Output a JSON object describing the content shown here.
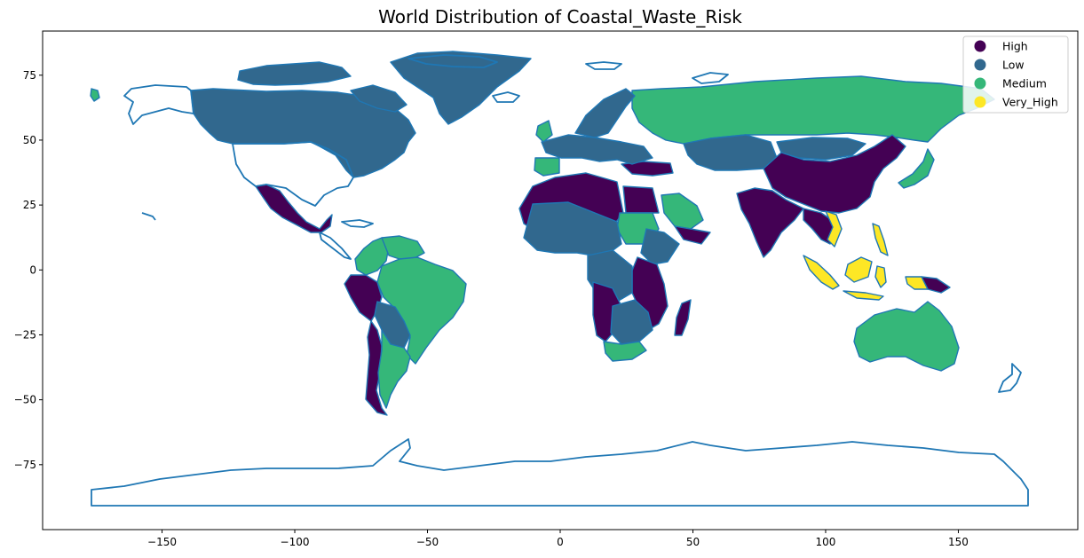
{
  "chart_data": {
    "type": "choropleth",
    "title": "World Distribution of Coastal_Waste_Risk",
    "xlim": [
      -195,
      195
    ],
    "ylim": [
      -100,
      92
    ],
    "x_ticks": [
      -150,
      -100,
      -50,
      0,
      50,
      100,
      150
    ],
    "y_ticks": [
      75,
      50,
      25,
      0,
      -25,
      -50,
      -75
    ],
    "x_tick_labels": [
      "−150",
      "−100",
      "−50",
      "0",
      "50",
      "100",
      "150"
    ],
    "y_tick_labels": [
      "75",
      "50",
      "25",
      "0",
      "−25",
      "−50",
      "−75"
    ],
    "legend_position": "top-right",
    "boundary_color": "#1f77b4",
    "categories": [
      {
        "name": "High",
        "color": "#440154"
      },
      {
        "name": "Low",
        "color": "#31688e"
      },
      {
        "name": "Medium",
        "color": "#35b779"
      },
      {
        "name": "Very_High",
        "color": "#fde725"
      }
    ],
    "regions": [
      {
        "name": "Canada",
        "category": "Low"
      },
      {
        "name": "Greenland",
        "category": "Low"
      },
      {
        "name": "Alaska",
        "category": "Medium"
      },
      {
        "name": "Mexico",
        "category": "High"
      },
      {
        "name": "Peru",
        "category": "High"
      },
      {
        "name": "Chile",
        "category": "High"
      },
      {
        "name": "Colombia",
        "category": "Medium"
      },
      {
        "name": "Venezuela",
        "category": "Medium"
      },
      {
        "name": "Brazil",
        "category": "Medium"
      },
      {
        "name": "Argentina",
        "category": "Medium"
      },
      {
        "name": "Bolivia",
        "category": "Low"
      },
      {
        "name": "Paraguay",
        "category": "Low"
      },
      {
        "name": "Russia",
        "category": "Medium"
      },
      {
        "name": "Kazakhstan",
        "category": "Low"
      },
      {
        "name": "Mongolia",
        "category": "Low"
      },
      {
        "name": "China",
        "category": "High"
      },
      {
        "name": "India",
        "category": "High"
      },
      {
        "name": "Southeast Asia",
        "category": "High"
      },
      {
        "name": "Vietnam",
        "category": "Very_High"
      },
      {
        "name": "Philippines",
        "category": "Very_High"
      },
      {
        "name": "Indonesia",
        "category": "Very_High"
      },
      {
        "name": "Borneo",
        "category": "Very_High"
      },
      {
        "name": "Papua New Guinea",
        "category": "High"
      },
      {
        "name": "Japan",
        "category": "Medium"
      },
      {
        "name": "Australia",
        "category": "Medium"
      },
      {
        "name": "Saudi Arabia",
        "category": "Medium"
      },
      {
        "name": "Turkey",
        "category": "High"
      },
      {
        "name": "North Africa",
        "category": "High"
      },
      {
        "name": "Egypt",
        "category": "High"
      },
      {
        "name": "Sudan",
        "category": "Medium"
      },
      {
        "name": "Sahel",
        "category": "Low"
      },
      {
        "name": "Ethiopia",
        "category": "Low"
      },
      {
        "name": "East Africa",
        "category": "High"
      },
      {
        "name": "Angola",
        "category": "High"
      },
      {
        "name": "Southern Africa",
        "category": "Low"
      },
      {
        "name": "South Africa",
        "category": "Medium"
      },
      {
        "name": "Madagascar",
        "category": "High"
      },
      {
        "name": "Scandinavia",
        "category": "Low"
      },
      {
        "name": "Europe",
        "category": "Low"
      },
      {
        "name": "Iberia",
        "category": "Medium"
      },
      {
        "name": "United Kingdom",
        "category": "Medium"
      }
    ]
  }
}
